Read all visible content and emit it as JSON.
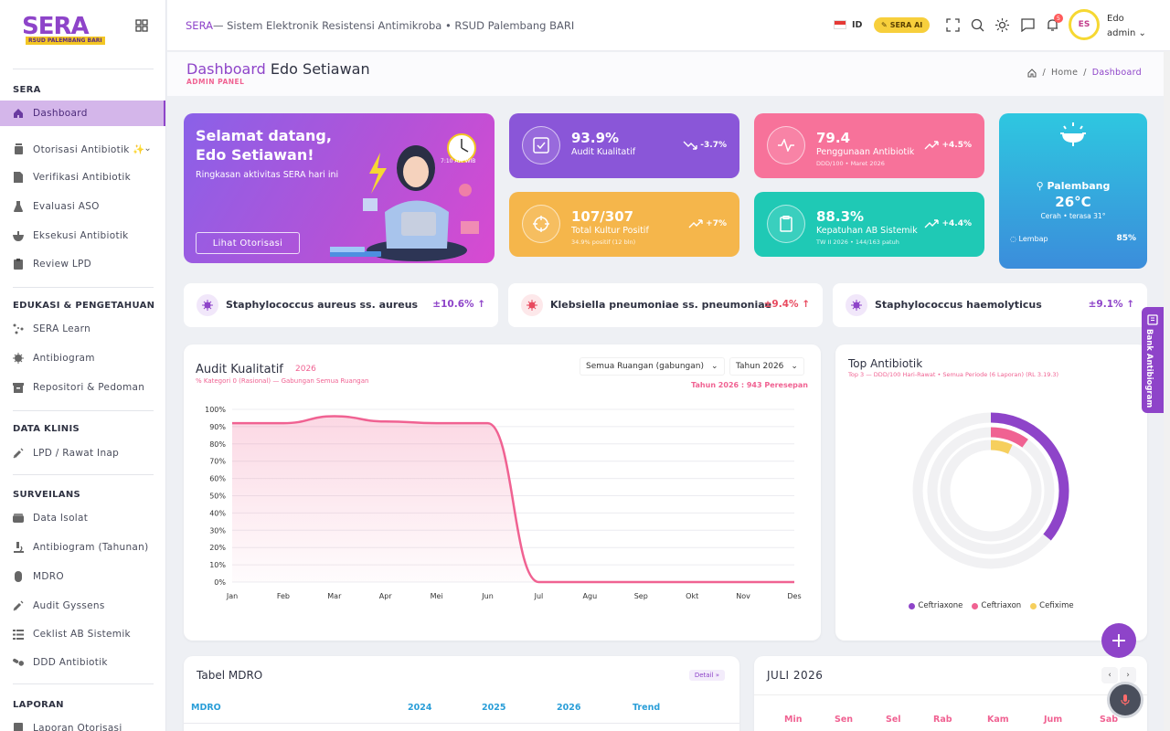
{
  "logo": {
    "text": "SERA",
    "subtitle": "RSUD PALEMBANG BARI"
  },
  "topbar": {
    "brand": "SERA",
    "title": "— Sistem Elektronik Resistensi Antimikroba • RSUD Palembang BARI",
    "lang": "ID",
    "ai_label": "SERA AI",
    "notif_count": "5",
    "avatar_initials": "ES",
    "user_name": "Edo",
    "user_role": "admin"
  },
  "header": {
    "title_highlight": "Dashboard",
    "title_name": "Edo Setiawan",
    "subtitle": "ADMIN PANEL",
    "breadcrumb": [
      "Home",
      "Dashboard"
    ]
  },
  "sidebar": {
    "sections": [
      {
        "title": "SERA",
        "items": [
          "Dashboard",
          "Otorisasi Antibiotik ✨",
          "Verifikasi Antibiotik",
          "Evaluasi ASO",
          "Eksekusi Antibiotik",
          "Review LPD"
        ]
      },
      {
        "title": "EDUKASI & PENGETAHUAN",
        "items": [
          "SERA Learn",
          "Antibiogram",
          "Repositori & Pedoman"
        ]
      },
      {
        "title": "DATA KLINIS",
        "items": [
          "LPD / Rawat Inap"
        ]
      },
      {
        "title": "SURVEILANS",
        "items": [
          "Data Isolat",
          "Antibiogram (Tahunan)",
          "MDRO",
          "Audit Gyssens",
          "Ceklist AB Sistemik",
          "DDD Antibiotik"
        ]
      },
      {
        "title": "LAPORAN",
        "items": [
          "Laporan Otorisasi"
        ]
      }
    ]
  },
  "welcome": {
    "title_line1": "Selamat datang,",
    "title_line2": "Edo Setiawan!",
    "text": "Ringkasan aktivitas SERA hari ini",
    "button": "Lihat Otorisasi",
    "clock_time": "7:10 AM WIB"
  },
  "stats": [
    {
      "value": "93.9%",
      "label": "Audit Kualitatif",
      "note": "",
      "trend": "-3.7%",
      "color": "#8a56d8"
    },
    {
      "value": "79.4",
      "label": "Penggunaan Antibiotik",
      "note": "DDD/100 • Maret 2026",
      "trend": "+4.5%",
      "color": "#f7729a"
    },
    {
      "value": "107/307",
      "label": "Total Kultur Positif",
      "note": "34.9% positif (12 bln)",
      "trend": "+7%",
      "color": "#f5b64b"
    },
    {
      "value": "88.3%",
      "label": "Kepatuhan AB Sistemik",
      "note": "TW II 2026 • 144/163 patuh",
      "trend": "+4.4%",
      "color": "#1fc9b5"
    }
  ],
  "weather": {
    "city": "Palembang",
    "temp": "26°C",
    "desc": "Cerah • terasa 31°",
    "humidity_label": "Lembap",
    "humidity": "85%"
  },
  "bacteria": [
    {
      "name": "Staphylococcus aureus ss. aureus",
      "pct": "±10.6%",
      "color": "#8e44c9"
    },
    {
      "name": "Klebsiella pneumoniae ss. pneumoniae",
      "pct": "±9.4%",
      "color": "#e84a5f"
    },
    {
      "name": "Staphylococcus haemolyticus",
      "pct": "±9.1%",
      "color": "#8e44c9"
    }
  ],
  "audit": {
    "title": "Audit Kualitatif",
    "year_tag": "2026",
    "subtitle": "% Kategori 0 (Rasional) — Gabungan Semua Ruangan",
    "room_select": "Semua Ruangan (gabungan)",
    "year_select": "Tahun 2026",
    "total": "Tahun 2026 : 943 Peresepan"
  },
  "chart_data": {
    "type": "area",
    "title": "Audit Kualitatif",
    "categories": [
      "Jan",
      "Feb",
      "Mar",
      "Apr",
      "Mei",
      "Jun",
      "Jul",
      "Agu",
      "Sep",
      "Okt",
      "Nov",
      "Des"
    ],
    "values": [
      92,
      92,
      96,
      93,
      92,
      92,
      0,
      0,
      0,
      0,
      0,
      0
    ],
    "y_ticks": [
      "0%",
      "10%",
      "20%",
      "30%",
      "40%",
      "50%",
      "60%",
      "70%",
      "80%",
      "90%",
      "100%"
    ],
    "ylim": [
      0,
      100
    ],
    "color": "#f06292",
    "grid": true
  },
  "top_ab": {
    "title": "Top Antibiotik",
    "subtitle": "Top 3 — DDD/100 Hari-Rawat • Semua Periode (6 Laporan) (RL 3.19.3)",
    "items": [
      {
        "name": "Ceftriaxone",
        "color": "#8e44c9",
        "fraction": 0.36
      },
      {
        "name": "Ceftriaxon",
        "color": "#f06292",
        "fraction": 0.1
      },
      {
        "name": "Cefixime",
        "color": "#f6cf5d",
        "fraction": 0.07
      }
    ]
  },
  "mdro": {
    "title": "Tabel MDRO",
    "detail": "Detail »",
    "headers": [
      "MDRO",
      "2024",
      "2025",
      "2026",
      "Trend"
    ]
  },
  "calendar": {
    "title": "JULI 2026",
    "prev": "‹",
    "next": "›",
    "days": [
      "Min",
      "Sen",
      "Sel",
      "Rab",
      "Kam",
      "Jum",
      "Sab"
    ]
  },
  "bank": {
    "label": "Bank Antibiogram"
  },
  "fab": {
    "label": "+"
  }
}
